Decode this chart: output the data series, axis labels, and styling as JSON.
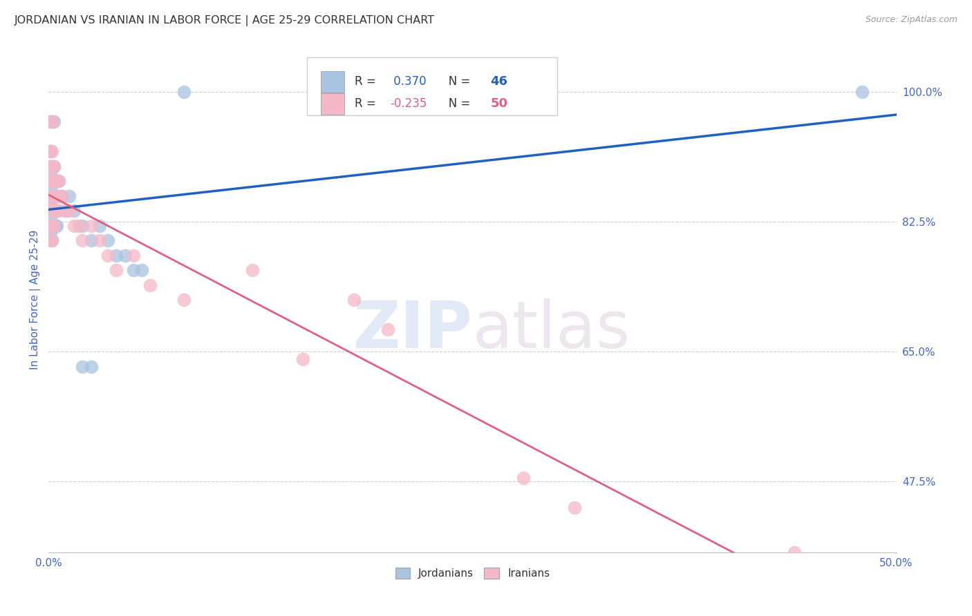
{
  "title": "JORDANIAN VS IRANIAN IN LABOR FORCE | AGE 25-29 CORRELATION CHART",
  "source": "Source: ZipAtlas.com",
  "ylabel_label": "In Labor Force | Age 25-29",
  "xlim": [
    0.0,
    0.5
  ],
  "ylim": [
    0.38,
    1.06
  ],
  "ytick_labels_right": [
    "100.0%",
    "82.5%",
    "65.0%",
    "47.5%"
  ],
  "ytick_vals_right": [
    1.0,
    0.825,
    0.65,
    0.475
  ],
  "R_jordan": 0.37,
  "N_jordan": 46,
  "R_iran": -0.235,
  "N_iran": 50,
  "jordan_color": "#a8c4e0",
  "iran_color": "#f4b8c8",
  "jordan_line_color": "#2060c0",
  "iran_line_color": "#e06080",
  "watermark_zip": "ZIP",
  "watermark_atlas": "atlas",
  "jordan_points": [
    [
      0.001,
      0.96
    ],
    [
      0.002,
      0.96
    ],
    [
      0.003,
      0.96
    ],
    [
      0.001,
      0.92
    ],
    [
      0.002,
      0.9
    ],
    [
      0.003,
      0.9
    ],
    [
      0.001,
      0.89
    ],
    [
      0.002,
      0.88
    ],
    [
      0.003,
      0.88
    ],
    [
      0.001,
      0.87
    ],
    [
      0.002,
      0.86
    ],
    [
      0.003,
      0.86
    ],
    [
      0.001,
      0.85
    ],
    [
      0.002,
      0.84
    ],
    [
      0.003,
      0.84
    ],
    [
      0.001,
      0.83
    ],
    [
      0.002,
      0.82
    ],
    [
      0.003,
      0.82
    ],
    [
      0.001,
      0.81
    ],
    [
      0.002,
      0.8
    ],
    [
      0.004,
      0.88
    ],
    [
      0.005,
      0.88
    ],
    [
      0.006,
      0.88
    ],
    [
      0.004,
      0.86
    ],
    [
      0.005,
      0.86
    ],
    [
      0.006,
      0.86
    ],
    [
      0.004,
      0.84
    ],
    [
      0.005,
      0.84
    ],
    [
      0.004,
      0.82
    ],
    [
      0.005,
      0.82
    ],
    [
      0.008,
      0.86
    ],
    [
      0.01,
      0.84
    ],
    [
      0.012,
      0.86
    ],
    [
      0.015,
      0.84
    ],
    [
      0.02,
      0.82
    ],
    [
      0.025,
      0.8
    ],
    [
      0.03,
      0.82
    ],
    [
      0.035,
      0.8
    ],
    [
      0.04,
      0.78
    ],
    [
      0.045,
      0.78
    ],
    [
      0.05,
      0.76
    ],
    [
      0.055,
      0.76
    ],
    [
      0.02,
      0.63
    ],
    [
      0.025,
      0.63
    ],
    [
      0.08,
      1.0
    ],
    [
      0.48,
      1.0
    ]
  ],
  "iran_points": [
    [
      0.001,
      0.96
    ],
    [
      0.002,
      0.96
    ],
    [
      0.001,
      0.92
    ],
    [
      0.002,
      0.92
    ],
    [
      0.001,
      0.9
    ],
    [
      0.002,
      0.9
    ],
    [
      0.003,
      0.9
    ],
    [
      0.001,
      0.88
    ],
    [
      0.002,
      0.88
    ],
    [
      0.003,
      0.88
    ],
    [
      0.004,
      0.88
    ],
    [
      0.001,
      0.86
    ],
    [
      0.002,
      0.86
    ],
    [
      0.003,
      0.86
    ],
    [
      0.004,
      0.86
    ],
    [
      0.001,
      0.84
    ],
    [
      0.002,
      0.84
    ],
    [
      0.003,
      0.84
    ],
    [
      0.004,
      0.84
    ],
    [
      0.001,
      0.82
    ],
    [
      0.002,
      0.82
    ],
    [
      0.003,
      0.82
    ],
    [
      0.001,
      0.8
    ],
    [
      0.002,
      0.8
    ],
    [
      0.005,
      0.88
    ],
    [
      0.006,
      0.88
    ],
    [
      0.005,
      0.86
    ],
    [
      0.006,
      0.86
    ],
    [
      0.005,
      0.84
    ],
    [
      0.006,
      0.84
    ],
    [
      0.008,
      0.86
    ],
    [
      0.01,
      0.84
    ],
    [
      0.012,
      0.84
    ],
    [
      0.015,
      0.82
    ],
    [
      0.018,
      0.82
    ],
    [
      0.02,
      0.8
    ],
    [
      0.025,
      0.82
    ],
    [
      0.03,
      0.8
    ],
    [
      0.035,
      0.78
    ],
    [
      0.04,
      0.76
    ],
    [
      0.05,
      0.78
    ],
    [
      0.06,
      0.74
    ],
    [
      0.08,
      0.72
    ],
    [
      0.12,
      0.76
    ],
    [
      0.18,
      0.72
    ],
    [
      0.2,
      0.68
    ],
    [
      0.15,
      0.64
    ],
    [
      0.28,
      0.48
    ],
    [
      0.31,
      0.44
    ],
    [
      0.44,
      0.38
    ]
  ],
  "background_color": "#ffffff",
  "grid_color": "#cccccc",
  "title_color": "#333333",
  "tick_color": "#4466cc"
}
